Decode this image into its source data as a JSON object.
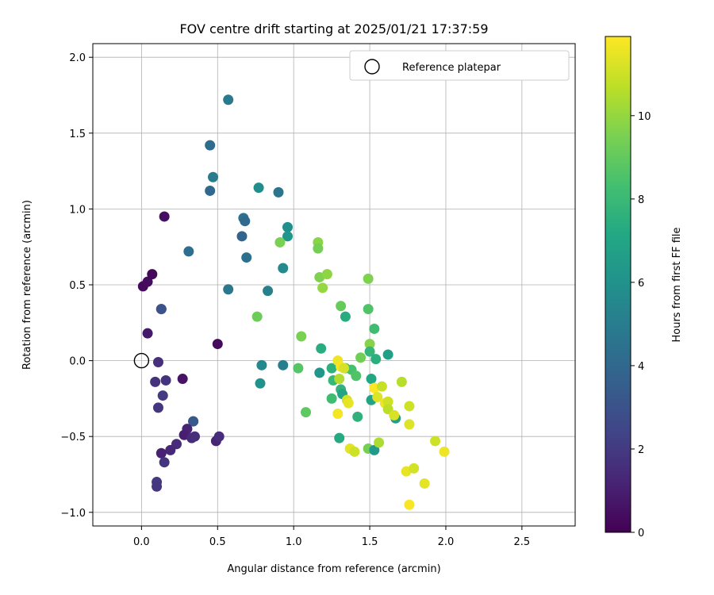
{
  "chart_data": {
    "type": "scatter",
    "title": "FOV centre drift starting at 2025/01/21 17:37:59",
    "xlabel": "Angular distance from reference (arcmin)",
    "ylabel": "Rotation from reference (arcmin)",
    "xlim": [
      -0.32,
      2.85
    ],
    "ylim": [
      -1.09,
      2.09
    ],
    "xticks": [
      0.0,
      0.5,
      1.0,
      1.5,
      2.0,
      2.5
    ],
    "xtick_labels": [
      "0.0",
      "0.5",
      "1.0",
      "1.5",
      "2.0",
      "2.5"
    ],
    "yticks": [
      -1.0,
      -0.5,
      0.0,
      0.5,
      1.0,
      1.5,
      2.0
    ],
    "ytick_labels": [
      "−1.0",
      "−0.5",
      "0.0",
      "0.5",
      "1.0",
      "1.5",
      "2.0"
    ],
    "grid": true,
    "legend": {
      "position": "top-right",
      "entries": [
        "Reference platepar"
      ]
    },
    "reference_point": {
      "x": 0.0,
      "y": 0.0
    },
    "colorbar": {
      "label": "Hours from first FF file",
      "colormap": "viridis",
      "range": [
        0,
        11.9
      ],
      "ticks": [
        0,
        2,
        4,
        6,
        8,
        10
      ],
      "tick_labels": [
        "0",
        "2",
        "4",
        "6",
        "8",
        "10"
      ]
    },
    "points": [
      {
        "x": 0.01,
        "y": 0.49,
        "h": 0.3
      },
      {
        "x": 0.04,
        "y": 0.52,
        "h": 0.4
      },
      {
        "x": 0.07,
        "y": 0.57,
        "h": 0.2
      },
      {
        "x": 0.15,
        "y": 0.95,
        "h": 0.5
      },
      {
        "x": 0.04,
        "y": 0.18,
        "h": 0.8
      },
      {
        "x": 0.27,
        "y": -0.12,
        "h": 0.6
      },
      {
        "x": 0.5,
        "y": 0.11,
        "h": 0.3
      },
      {
        "x": 0.11,
        "y": -0.01,
        "h": 1.6
      },
      {
        "x": 0.09,
        "y": -0.14,
        "h": 1.7
      },
      {
        "x": 0.16,
        "y": -0.13,
        "h": 1.8
      },
      {
        "x": 0.14,
        "y": -0.23,
        "h": 2.0
      },
      {
        "x": 0.11,
        "y": -0.31,
        "h": 1.9
      },
      {
        "x": 0.13,
        "y": 0.34,
        "h": 2.4
      },
      {
        "x": 0.13,
        "y": 0.34,
        "h": 3.0
      },
      {
        "x": 0.34,
        "y": -0.4,
        "h": 3.0
      },
      {
        "x": 0.34,
        "y": -0.4,
        "h": 3.3
      },
      {
        "x": 0.3,
        "y": -0.45,
        "h": 1.2
      },
      {
        "x": 0.28,
        "y": -0.49,
        "h": 1.0
      },
      {
        "x": 0.33,
        "y": -0.51,
        "h": 1.4
      },
      {
        "x": 0.35,
        "y": -0.5,
        "h": 1.6
      },
      {
        "x": 0.23,
        "y": -0.55,
        "h": 1.5
      },
      {
        "x": 0.19,
        "y": -0.59,
        "h": 1.3
      },
      {
        "x": 0.13,
        "y": -0.61,
        "h": 1.1
      },
      {
        "x": 0.15,
        "y": -0.67,
        "h": 1.8
      },
      {
        "x": 0.1,
        "y": -0.8,
        "h": 2.0
      },
      {
        "x": 0.1,
        "y": -0.83,
        "h": 1.9
      },
      {
        "x": 0.49,
        "y": -0.53,
        "h": 1.2
      },
      {
        "x": 0.51,
        "y": -0.5,
        "h": 1.5
      },
      {
        "x": 0.31,
        "y": 0.72,
        "h": 4.3
      },
      {
        "x": 0.57,
        "y": 1.72,
        "h": 4.8
      },
      {
        "x": 0.45,
        "y": 1.42,
        "h": 4.2
      },
      {
        "x": 0.47,
        "y": 1.21,
        "h": 4.9
      },
      {
        "x": 0.45,
        "y": 1.12,
        "h": 4.0
      },
      {
        "x": 0.57,
        "y": 0.47,
        "h": 4.7
      },
      {
        "x": 0.66,
        "y": 0.82,
        "h": 3.8
      },
      {
        "x": 0.67,
        "y": 0.94,
        "h": 4.5
      },
      {
        "x": 0.68,
        "y": 0.92,
        "h": 4.1
      },
      {
        "x": 0.69,
        "y": 0.68,
        "h": 4.4
      },
      {
        "x": 0.77,
        "y": 1.14,
        "h": 5.8
      },
      {
        "x": 0.9,
        "y": 1.11,
        "h": 4.6
      },
      {
        "x": 0.83,
        "y": 0.46,
        "h": 5.2
      },
      {
        "x": 0.79,
        "y": -0.03,
        "h": 5.5
      },
      {
        "x": 0.78,
        "y": -0.15,
        "h": 6.0
      },
      {
        "x": 0.93,
        "y": -0.03,
        "h": 5.1
      },
      {
        "x": 0.93,
        "y": 0.61,
        "h": 5.6
      },
      {
        "x": 0.96,
        "y": 0.88,
        "h": 5.9
      },
      {
        "x": 0.96,
        "y": 0.82,
        "h": 6.2
      },
      {
        "x": 0.91,
        "y": 0.78,
        "h": 9.5
      },
      {
        "x": 0.76,
        "y": 0.29,
        "h": 9.2
      },
      {
        "x": 1.16,
        "y": 0.78,
        "h": 9.8
      },
      {
        "x": 1.16,
        "y": 0.74,
        "h": 9.4
      },
      {
        "x": 1.17,
        "y": 0.55,
        "h": 9.6
      },
      {
        "x": 1.22,
        "y": 0.57,
        "h": 9.9
      },
      {
        "x": 1.19,
        "y": 0.48,
        "h": 10.0
      },
      {
        "x": 1.05,
        "y": 0.16,
        "h": 9.5
      },
      {
        "x": 1.03,
        "y": -0.05,
        "h": 8.7
      },
      {
        "x": 1.08,
        "y": -0.34,
        "h": 8.9
      },
      {
        "x": 1.18,
        "y": 0.08,
        "h": 7.4
      },
      {
        "x": 1.17,
        "y": -0.08,
        "h": 6.2
      },
      {
        "x": 1.25,
        "y": -0.05,
        "h": 7.6
      },
      {
        "x": 1.26,
        "y": -0.13,
        "h": 7.9
      },
      {
        "x": 1.25,
        "y": -0.25,
        "h": 8.2
      },
      {
        "x": 1.31,
        "y": -0.19,
        "h": 7.7
      },
      {
        "x": 1.32,
        "y": -0.22,
        "h": 7.0
      },
      {
        "x": 1.3,
        "y": -0.51,
        "h": 7.2
      },
      {
        "x": 1.31,
        "y": 0.36,
        "h": 9.1
      },
      {
        "x": 1.34,
        "y": 0.29,
        "h": 7.3
      },
      {
        "x": 1.34,
        "y": -0.05,
        "h": 8.1
      },
      {
        "x": 1.38,
        "y": -0.06,
        "h": 8.4
      },
      {
        "x": 1.41,
        "y": -0.1,
        "h": 8.6
      },
      {
        "x": 1.42,
        "y": -0.37,
        "h": 7.6
      },
      {
        "x": 1.44,
        "y": 0.02,
        "h": 9.3
      },
      {
        "x": 1.49,
        "y": 0.34,
        "h": 8.6
      },
      {
        "x": 1.49,
        "y": 0.54,
        "h": 9.6
      },
      {
        "x": 1.5,
        "y": 0.11,
        "h": 9.7
      },
      {
        "x": 1.5,
        "y": 0.06,
        "h": 7.8
      },
      {
        "x": 1.53,
        "y": 0.21,
        "h": 8.2
      },
      {
        "x": 1.54,
        "y": 0.01,
        "h": 7.5
      },
      {
        "x": 1.51,
        "y": -0.12,
        "h": 7.1
      },
      {
        "x": 1.51,
        "y": -0.26,
        "h": 6.9
      },
      {
        "x": 1.49,
        "y": -0.58,
        "h": 9.4
      },
      {
        "x": 1.53,
        "y": -0.59,
        "h": 6.4
      },
      {
        "x": 1.56,
        "y": -0.54,
        "h": 10.4
      },
      {
        "x": 1.62,
        "y": 0.04,
        "h": 6.7
      },
      {
        "x": 1.67,
        "y": -0.38,
        "h": 6.6
      },
      {
        "x": 1.29,
        "y": 0.0,
        "h": 11.6
      },
      {
        "x": 1.31,
        "y": -0.04,
        "h": 11.8
      },
      {
        "x": 1.33,
        "y": -0.05,
        "h": 11.2
      },
      {
        "x": 1.3,
        "y": -0.12,
        "h": 10.5
      },
      {
        "x": 1.35,
        "y": -0.26,
        "h": 11.1
      },
      {
        "x": 1.36,
        "y": -0.28,
        "h": 11.5
      },
      {
        "x": 1.29,
        "y": -0.35,
        "h": 11.7
      },
      {
        "x": 1.37,
        "y": -0.58,
        "h": 11.4
      },
      {
        "x": 1.4,
        "y": -0.6,
        "h": 11.0
      },
      {
        "x": 1.53,
        "y": -0.18,
        "h": 11.9
      },
      {
        "x": 1.55,
        "y": -0.24,
        "h": 11.3
      },
      {
        "x": 1.58,
        "y": -0.17,
        "h": 10.9
      },
      {
        "x": 1.6,
        "y": -0.28,
        "h": 11.6
      },
      {
        "x": 1.62,
        "y": -0.27,
        "h": 11.0
      },
      {
        "x": 1.62,
        "y": -0.32,
        "h": 10.7
      },
      {
        "x": 1.66,
        "y": -0.36,
        "h": 11.2
      },
      {
        "x": 1.71,
        "y": -0.14,
        "h": 10.6
      },
      {
        "x": 1.76,
        "y": -0.3,
        "h": 11.0
      },
      {
        "x": 1.76,
        "y": -0.42,
        "h": 11.3
      },
      {
        "x": 1.74,
        "y": -0.73,
        "h": 11.5
      },
      {
        "x": 1.79,
        "y": -0.71,
        "h": 11.1
      },
      {
        "x": 1.76,
        "y": -0.95,
        "h": 11.8
      },
      {
        "x": 1.86,
        "y": -0.81,
        "h": 11.4
      },
      {
        "x": 1.93,
        "y": -0.53,
        "h": 11.0
      },
      {
        "x": 1.99,
        "y": -0.6,
        "h": 11.6
      }
    ]
  }
}
